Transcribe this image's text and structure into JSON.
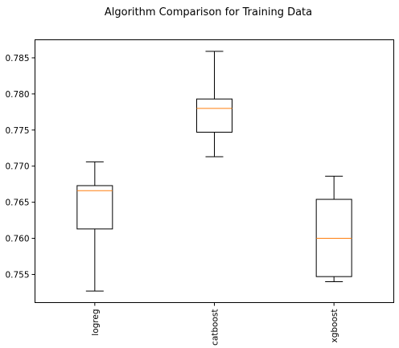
{
  "chart_data": {
    "type": "box",
    "title": "Algorithm Comparison for Training Data",
    "xlabel": "",
    "ylabel": "",
    "categories": [
      "logreg",
      "catboost",
      "xgboost"
    ],
    "boxes": [
      {
        "name": "logreg",
        "whisker_low": 0.7527,
        "q1": 0.7613,
        "median": 0.7666,
        "q3": 0.7673,
        "whisker_high": 0.7706
      },
      {
        "name": "catboost",
        "whisker_low": 0.7713,
        "q1": 0.7747,
        "median": 0.778,
        "q3": 0.7793,
        "whisker_high": 0.7859
      },
      {
        "name": "xgboost",
        "whisker_low": 0.754,
        "q1": 0.7547,
        "median": 0.76,
        "q3": 0.7654,
        "whisker_high": 0.7686
      }
    ],
    "ylim": [
      0.7511,
      0.7875
    ],
    "yticks": [
      0.755,
      0.76,
      0.765,
      0.77,
      0.775,
      0.78,
      0.785
    ],
    "ytick_labels": [
      "0.755",
      "0.760",
      "0.765",
      "0.770",
      "0.775",
      "0.780",
      "0.785"
    ],
    "grid": false,
    "colors": {
      "box": "#000000",
      "median": "#ff7f0e"
    }
  }
}
